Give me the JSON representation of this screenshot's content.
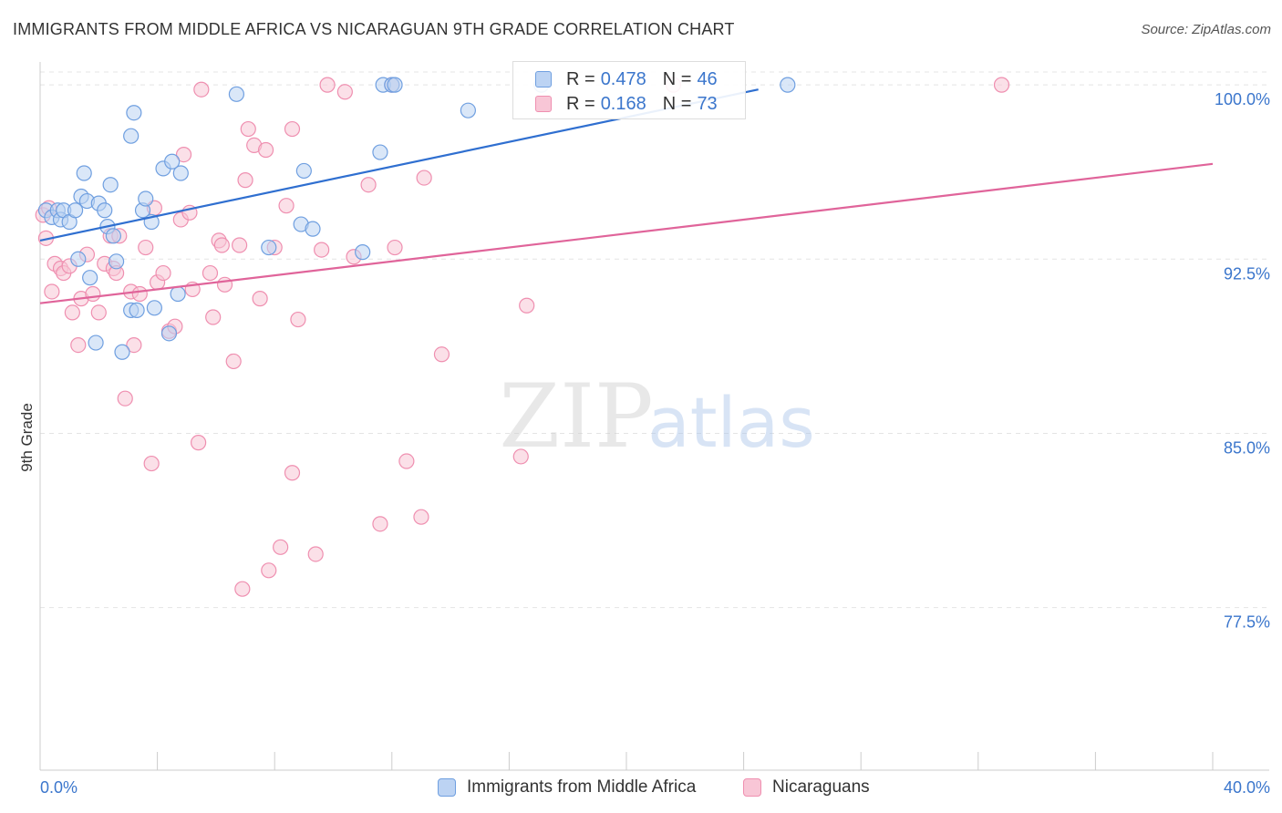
{
  "header": {
    "title": "IMMIGRANTS FROM MIDDLE AFRICA VS NICARAGUAN 9TH GRADE CORRELATION CHART",
    "source": "Source: ZipAtlas.com"
  },
  "watermark": {
    "zip": "ZIP",
    "atlas": "atlas"
  },
  "legend": {
    "rows": [
      {
        "r_label": "R =",
        "r_value": "0.478",
        "n_label": "N =",
        "n_value": "46",
        "color": "#6f9fe0"
      },
      {
        "r_label": "R =",
        "r_value": "0.168",
        "n_label": "N =",
        "n_value": "73",
        "color": "#ef8fb0"
      }
    ]
  },
  "bottom_legend": {
    "items": [
      {
        "label": "Immigrants from Middle Africa",
        "color": "#6f9fe0"
      },
      {
        "label": "Nicaraguans",
        "color": "#ef8fb0"
      }
    ]
  },
  "chart_data": {
    "type": "scatter",
    "title": "IMMIGRANTS FROM MIDDLE AFRICA VS NICARAGUAN 9TH GRADE CORRELATION CHART",
    "xlabel": "",
    "ylabel": "9th Grade",
    "xlim": [
      0,
      40
    ],
    "ylim": [
      70.5,
      101.3
    ],
    "x_tick_labels": [
      "0.0%",
      "40.0%"
    ],
    "y_ticks": [
      77.5,
      85.0,
      92.5,
      100.0
    ],
    "y_tick_labels": [
      "77.5%",
      "85.0%",
      "92.5%",
      "100.0%"
    ],
    "grid": "horizontal dashed",
    "legend_position": "top-center",
    "series": [
      {
        "name": "Immigrants from Middle Africa",
        "color": "#6f9fe0",
        "trend": {
          "x": [
            0,
            24.5
          ],
          "y": [
            93.3,
            99.8
          ]
        },
        "points": [
          [
            0.2,
            94.6
          ],
          [
            0.4,
            94.3
          ],
          [
            0.6,
            94.6
          ],
          [
            0.7,
            94.2
          ],
          [
            0.8,
            94.6
          ],
          [
            1.0,
            94.1
          ],
          [
            1.2,
            94.6
          ],
          [
            1.3,
            92.5
          ],
          [
            1.4,
            95.2
          ],
          [
            1.5,
            96.2
          ],
          [
            1.6,
            95.0
          ],
          [
            1.7,
            91.7
          ],
          [
            1.9,
            88.9
          ],
          [
            2.0,
            94.9
          ],
          [
            2.2,
            94.6
          ],
          [
            2.3,
            93.9
          ],
          [
            2.4,
            95.7
          ],
          [
            2.5,
            93.5
          ],
          [
            2.6,
            92.4
          ],
          [
            2.8,
            88.5
          ],
          [
            3.1,
            90.3
          ],
          [
            3.1,
            97.8
          ],
          [
            3.2,
            98.8
          ],
          [
            3.3,
            90.3
          ],
          [
            3.5,
            94.6
          ],
          [
            3.6,
            95.1
          ],
          [
            3.8,
            94.1
          ],
          [
            3.9,
            90.4
          ],
          [
            4.2,
            96.4
          ],
          [
            4.4,
            89.3
          ],
          [
            4.5,
            96.7
          ],
          [
            4.7,
            91.0
          ],
          [
            4.8,
            96.2
          ],
          [
            6.7,
            99.6
          ],
          [
            7.8,
            93.0
          ],
          [
            8.9,
            94.0
          ],
          [
            9.3,
            93.8
          ],
          [
            9.0,
            96.3
          ],
          [
            11.0,
            92.8
          ],
          [
            11.6,
            97.1
          ],
          [
            11.7,
            100.0
          ],
          [
            12.0,
            100.0
          ],
          [
            12.1,
            100.0
          ],
          [
            14.6,
            98.9
          ],
          [
            17.1,
            100.0
          ],
          [
            25.5,
            100.0
          ]
        ]
      },
      {
        "name": "Nicaraguans",
        "color": "#ef8fb0",
        "trend": {
          "x": [
            0,
            40
          ],
          "y": [
            90.6,
            96.6
          ]
        },
        "points": [
          [
            0.1,
            94.4
          ],
          [
            0.2,
            93.4
          ],
          [
            0.3,
            94.7
          ],
          [
            0.4,
            91.1
          ],
          [
            0.5,
            92.3
          ],
          [
            0.7,
            92.1
          ],
          [
            0.8,
            91.9
          ],
          [
            1.0,
            92.2
          ],
          [
            1.1,
            90.2
          ],
          [
            1.3,
            88.8
          ],
          [
            1.4,
            90.8
          ],
          [
            1.6,
            92.7
          ],
          [
            1.8,
            91.0
          ],
          [
            2.0,
            90.2
          ],
          [
            2.2,
            92.3
          ],
          [
            2.4,
            93.5
          ],
          [
            2.5,
            92.1
          ],
          [
            2.6,
            91.9
          ],
          [
            2.7,
            93.5
          ],
          [
            2.9,
            86.5
          ],
          [
            3.1,
            91.1
          ],
          [
            3.2,
            88.8
          ],
          [
            3.4,
            91.0
          ],
          [
            3.6,
            93.0
          ],
          [
            3.8,
            83.7
          ],
          [
            3.9,
            94.7
          ],
          [
            4.0,
            91.5
          ],
          [
            4.2,
            91.9
          ],
          [
            4.4,
            89.4
          ],
          [
            4.6,
            89.6
          ],
          [
            4.8,
            94.2
          ],
          [
            4.9,
            97.0
          ],
          [
            5.1,
            94.5
          ],
          [
            5.2,
            91.2
          ],
          [
            5.4,
            84.6
          ],
          [
            5.5,
            99.8
          ],
          [
            5.8,
            91.9
          ],
          [
            5.9,
            90.0
          ],
          [
            6.1,
            93.3
          ],
          [
            6.2,
            93.1
          ],
          [
            6.3,
            91.4
          ],
          [
            6.6,
            88.1
          ],
          [
            6.8,
            93.1
          ],
          [
            6.9,
            78.3
          ],
          [
            7.0,
            95.9
          ],
          [
            7.1,
            98.1
          ],
          [
            7.3,
            97.4
          ],
          [
            7.5,
            90.8
          ],
          [
            7.7,
            97.2
          ],
          [
            7.8,
            79.1
          ],
          [
            8.0,
            93.0
          ],
          [
            8.2,
            80.1
          ],
          [
            8.4,
            94.8
          ],
          [
            8.6,
            98.1
          ],
          [
            8.6,
            83.3
          ],
          [
            8.8,
            89.9
          ],
          [
            9.4,
            79.8
          ],
          [
            9.6,
            92.9
          ],
          [
            9.8,
            100.0
          ],
          [
            10.4,
            99.7
          ],
          [
            10.7,
            92.6
          ],
          [
            11.2,
            95.7
          ],
          [
            11.6,
            81.1
          ],
          [
            12.0,
            100.0
          ],
          [
            12.1,
            93.0
          ],
          [
            12.5,
            83.8
          ],
          [
            13.0,
            81.4
          ],
          [
            13.1,
            96.0
          ],
          [
            13.7,
            88.4
          ],
          [
            16.4,
            84.0
          ],
          [
            16.6,
            90.5
          ],
          [
            21.6,
            100.0
          ],
          [
            32.8,
            100.0
          ]
        ]
      }
    ]
  }
}
